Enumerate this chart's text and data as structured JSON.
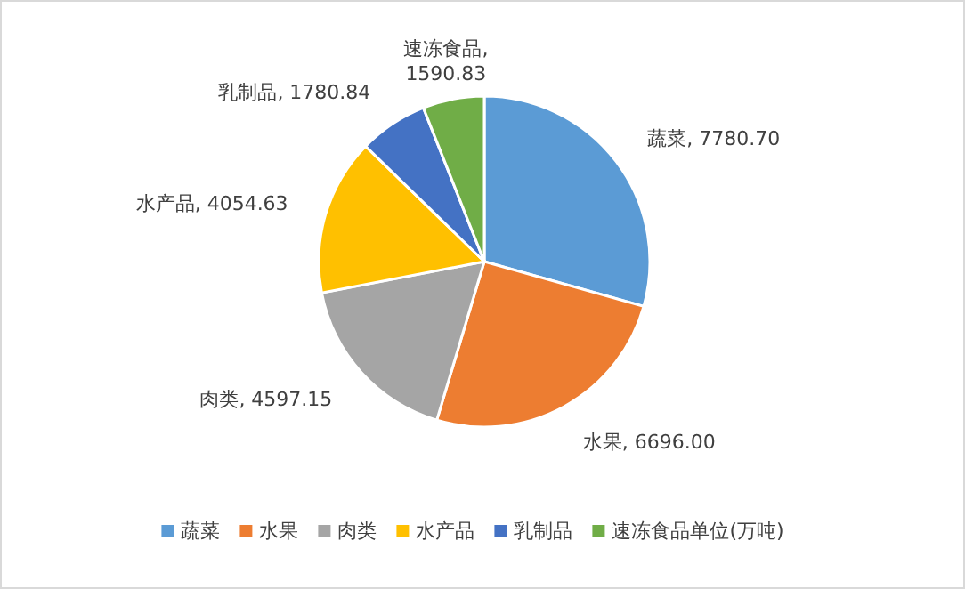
{
  "chart_data": {
    "type": "pie",
    "categories": [
      "蔬菜",
      "水果",
      "肉类",
      "水产品",
      "乳制品",
      "速冻食品"
    ],
    "values": [
      7780.7,
      6696.0,
      4597.15,
      4054.63,
      1780.84,
      1590.83
    ],
    "value_labels": [
      "蔬菜, 7780.70",
      "水果, 6696.00",
      "肉类, 4597.15",
      "水产品, 4054.63",
      "乳制品, 1780.84",
      "速冻食品,\n1590.83"
    ],
    "colors": [
      "#5b9bd5",
      "#ed7d31",
      "#a5a5a5",
      "#ffc000",
      "#4472c4",
      "#70ad47"
    ],
    "legend": "bottom",
    "annotations": [
      "单位(万吨)"
    ]
  }
}
